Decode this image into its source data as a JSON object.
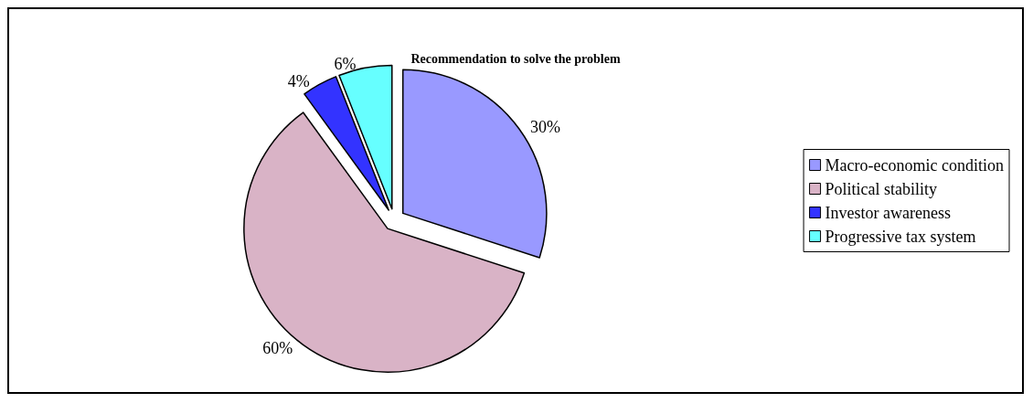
{
  "chart_data": {
    "type": "pie",
    "title": "Recommendation to solve the problem",
    "categories": [
      "Macro-economic condition",
      "Political stability",
      "Investor awareness",
      "Progressive tax system"
    ],
    "values": [
      30,
      60,
      4,
      6
    ],
    "value_labels": [
      "30%",
      "60%",
      "4%",
      "6%"
    ],
    "colors": [
      "#9999ff",
      "#d9b3c6",
      "#3333ff",
      "#66ffff"
    ],
    "legend": "right"
  }
}
